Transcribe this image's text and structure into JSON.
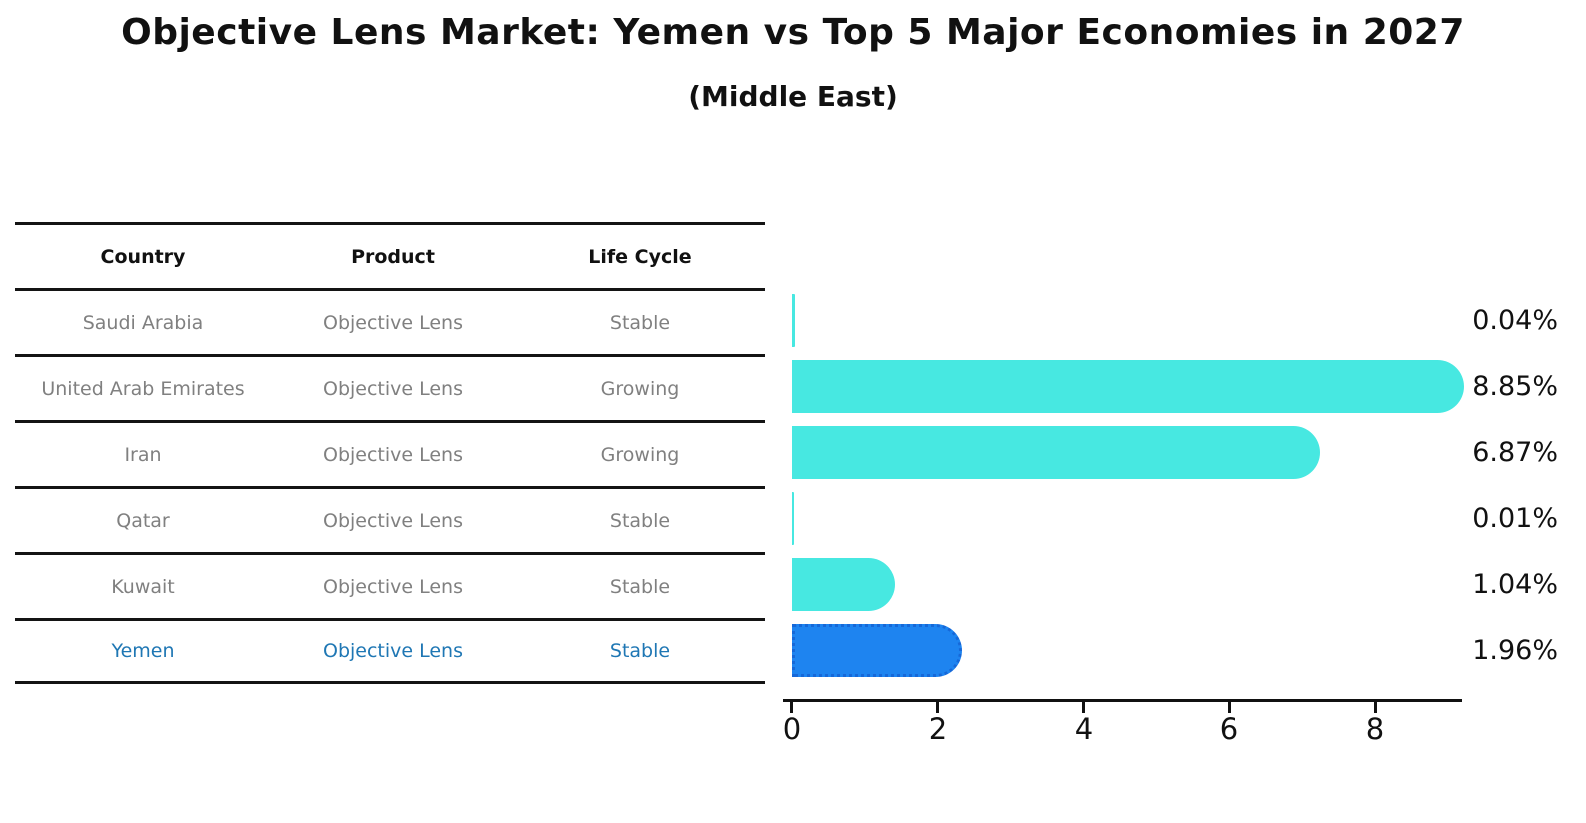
{
  "title": "Objective Lens Market: Yemen vs Top 5 Major Economies in 2027",
  "subtitle": "(Middle East)",
  "table": {
    "headers": {
      "country": "Country",
      "product": "Product",
      "life_cycle": "Life Cycle"
    },
    "rows": [
      {
        "country": "Saudi Arabia",
        "product": "Objective Lens",
        "life_cycle": "Stable"
      },
      {
        "country": "United Arab Emirates",
        "product": "Objective Lens",
        "life_cycle": "Growing"
      },
      {
        "country": "Iran",
        "product": "Objective Lens",
        "life_cycle": "Growing"
      },
      {
        "country": "Qatar",
        "product": "Objective Lens",
        "life_cycle": "Stable"
      },
      {
        "country": "Kuwait",
        "product": "Objective Lens",
        "life_cycle": "Stable"
      },
      {
        "country": "Yemen",
        "product": "Objective Lens",
        "life_cycle": "Stable"
      }
    ]
  },
  "chart_data": {
    "type": "bar",
    "orientation": "horizontal",
    "title": "Objective Lens Market: Yemen vs Top 5 Major Economies in 2027",
    "subtitle": "(Middle East)",
    "categories": [
      "Saudi Arabia",
      "United Arab Emirates",
      "Iran",
      "Qatar",
      "Kuwait",
      "Yemen"
    ],
    "values": [
      0.04,
      8.85,
      6.87,
      0.01,
      1.04,
      1.96
    ],
    "value_labels": [
      "0.04%",
      "8.85%",
      "6.87%",
      "0.01%",
      "1.04%",
      "1.96%"
    ],
    "life_cycle": [
      "Stable",
      "Growing",
      "Growing",
      "Stable",
      "Stable",
      "Stable"
    ],
    "product": "Objective Lens",
    "x_ticks": [
      "0",
      "2",
      "4",
      "6",
      "8"
    ],
    "xlim": [
      0,
      9.3
    ],
    "grid": false,
    "legend": false,
    "highlight_index": 5,
    "colors": {
      "bar": "#47e8e1",
      "highlight": "#1e84f0",
      "highlight_border": "#1668d8",
      "highlight_text": "#1f77b4",
      "cell_text": "#808080",
      "header_text": "#111111",
      "axis": "#111111"
    }
  }
}
